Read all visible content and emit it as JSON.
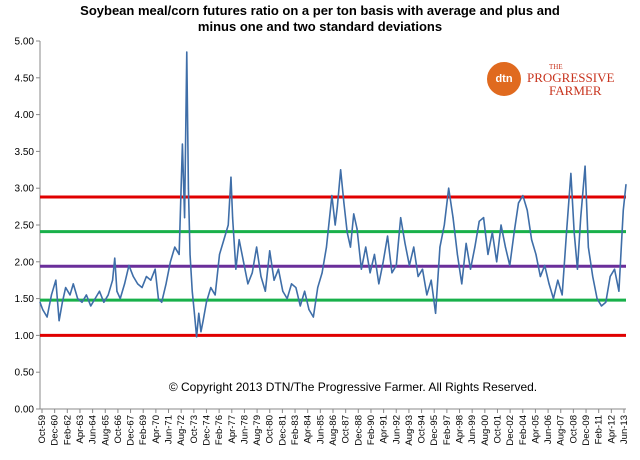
{
  "title_line1": "Soybean meal/corn futures ratio on a per ton basis with average and plus and",
  "title_line2": "minus one and two standard deviations",
  "copyright": "© Copyright 2013 DTN/The Progressive Farmer. All Rights Reserved.",
  "logo": {
    "mark": "dtn",
    "small": "THE",
    "line1": "PROGRESSIVE",
    "line2": "FARMER"
  },
  "colors": {
    "series": "#3f6ea8",
    "outer_band": "#e00000",
    "inner_band": "#18b04a",
    "average": "#6a2e9a",
    "axis": "#888888"
  },
  "chart_data": {
    "type": "line",
    "ylim": [
      0,
      5
    ],
    "y_ticks": [
      "0.00",
      "0.50",
      "1.00",
      "1.50",
      "2.00",
      "2.50",
      "3.00",
      "3.50",
      "4.00",
      "4.50",
      "5.00"
    ],
    "x_ticks": [
      "Oct-59",
      "Dec-60",
      "Feb-62",
      "Apr-63",
      "Jun-64",
      "Aug-65",
      "Oct-66",
      "Dec-67",
      "Feb-69",
      "Apr-70",
      "Jun-71",
      "Aug-72",
      "Oct-73",
      "Dec-74",
      "Feb-76",
      "Apr-77",
      "Jun-78",
      "Aug-79",
      "Oct-80",
      "Dec-81",
      "Feb-83",
      "Apr-84",
      "Jun-85",
      "Aug-86",
      "Oct-87",
      "Dec-88",
      "Feb-90",
      "Apr-91",
      "Jun-92",
      "Aug-93",
      "Oct-94",
      "Dec-95",
      "Feb-97",
      "Apr-98",
      "Jun-99",
      "Aug-00",
      "Oct-01",
      "Dec-02",
      "Feb-04",
      "Apr-05",
      "Jun-06",
      "Aug-07",
      "Oct-08",
      "Dec-09",
      "Feb-11",
      "Apr-12",
      "Jun-13"
    ],
    "reference_lines": {
      "plus_two_sd": 2.88,
      "plus_one_sd": 2.41,
      "average": 1.94,
      "minus_one_sd": 1.48,
      "minus_two_sd": 1.0
    },
    "series": [
      {
        "x": [
          1959.75,
          1960.0,
          1960.4,
          1960.8,
          1961.2,
          1961.5,
          1961.8,
          1962.1,
          1962.5,
          1962.8,
          1963.2,
          1963.6,
          1964.0,
          1964.4,
          1964.8,
          1965.2,
          1965.6,
          1966.0,
          1966.4,
          1966.6,
          1966.8,
          1967.1,
          1967.5,
          1967.9,
          1968.3,
          1968.7,
          1969.1,
          1969.5,
          1969.9,
          1970.3,
          1970.6,
          1970.9,
          1971.3,
          1971.7,
          1972.1,
          1972.5,
          1972.8,
          1973.0,
          1973.2,
          1973.35,
          1973.5,
          1973.7,
          1973.9,
          1974.1,
          1974.3,
          1974.5,
          1974.7,
          1975.0,
          1975.4,
          1975.8,
          1976.2,
          1976.6,
          1977.0,
          1977.25,
          1977.4,
          1977.7,
          1978.0,
          1978.4,
          1978.8,
          1979.2,
          1979.6,
          1980.0,
          1980.4,
          1980.8,
          1981.2,
          1981.6,
          1982.0,
          1982.4,
          1982.8,
          1983.2,
          1983.6,
          1984.0,
          1984.4,
          1984.8,
          1985.2,
          1985.6,
          1986.0,
          1986.5,
          1986.8,
          1987.0,
          1987.3,
          1987.6,
          1987.9,
          1988.2,
          1988.5,
          1988.8,
          1989.2,
          1989.6,
          1990.0,
          1990.4,
          1990.8,
          1991.2,
          1991.6,
          1992.0,
          1992.4,
          1992.8,
          1993.2,
          1993.6,
          1994.0,
          1994.4,
          1994.8,
          1995.2,
          1995.6,
          1996.0,
          1996.4,
          1996.8,
          1997.2,
          1997.6,
          1998.0,
          1998.4,
          1998.8,
          1999.2,
          1999.6,
          2000.0,
          2000.4,
          2000.8,
          2001.2,
          2001.6,
          2002.0,
          2002.4,
          2002.8,
          2003.2,
          2003.6,
          2004.0,
          2004.4,
          2004.8,
          2005.2,
          2005.6,
          2006.0,
          2006.4,
          2006.8,
          2007.2,
          2007.6,
          2008.0,
          2008.4,
          2008.7,
          2009.0,
          2009.3,
          2009.7,
          2010.0,
          2010.4,
          2010.8,
          2011.2,
          2011.6,
          2012.0,
          2012.4,
          2012.8,
          2013.2,
          2013.45
        ],
        "values": [
          1.45,
          1.35,
          1.25,
          1.55,
          1.75,
          1.2,
          1.45,
          1.65,
          1.55,
          1.7,
          1.5,
          1.45,
          1.55,
          1.4,
          1.5,
          1.6,
          1.45,
          1.55,
          1.75,
          2.05,
          1.6,
          1.5,
          1.7,
          1.95,
          1.8,
          1.7,
          1.65,
          1.8,
          1.75,
          1.9,
          1.5,
          1.45,
          1.7,
          2.0,
          2.2,
          2.1,
          3.6,
          2.6,
          4.85,
          3.0,
          2.1,
          1.6,
          1.3,
          0.98,
          1.3,
          1.05,
          1.2,
          1.45,
          1.65,
          1.55,
          2.1,
          2.3,
          2.5,
          3.15,
          2.6,
          1.9,
          2.3,
          2.0,
          1.7,
          1.85,
          2.2,
          1.8,
          1.6,
          2.15,
          1.75,
          1.9,
          1.6,
          1.5,
          1.7,
          1.65,
          1.4,
          1.6,
          1.35,
          1.25,
          1.65,
          1.85,
          2.2,
          2.9,
          2.5,
          2.75,
          3.25,
          2.8,
          2.4,
          2.2,
          2.65,
          2.45,
          1.9,
          2.2,
          1.85,
          2.1,
          1.7,
          2.0,
          2.35,
          1.85,
          1.95,
          2.6,
          2.25,
          1.95,
          2.2,
          1.8,
          1.9,
          1.55,
          1.75,
          1.3,
          2.2,
          2.5,
          3.0,
          2.6,
          2.1,
          1.7,
          2.25,
          1.9,
          2.2,
          2.55,
          2.6,
          2.1,
          2.4,
          2.0,
          2.5,
          2.2,
          1.95,
          2.4,
          2.8,
          2.9,
          2.7,
          2.3,
          2.1,
          1.8,
          1.95,
          1.7,
          1.5,
          1.75,
          1.55,
          2.4,
          3.2,
          2.4,
          1.9,
          2.6,
          3.3,
          2.2,
          1.8,
          1.5,
          1.4,
          1.45,
          1.8,
          1.9,
          1.6,
          2.7,
          3.05
        ]
      }
    ]
  }
}
